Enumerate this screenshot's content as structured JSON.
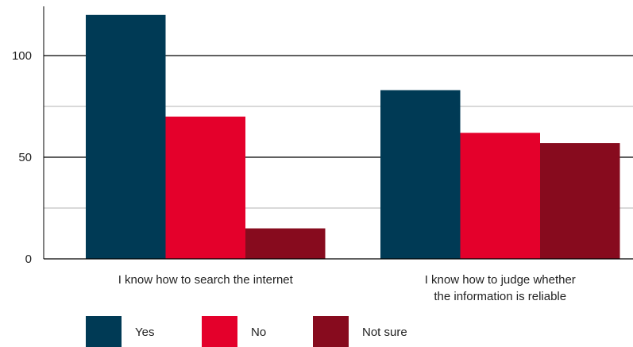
{
  "chart_data": {
    "type": "bar",
    "categories": [
      [
        "I know how to search the internet"
      ],
      [
        "I know how to judge whether",
        "the information is reliable"
      ]
    ],
    "series": [
      {
        "name": "Yes",
        "values": [
          120,
          83
        ],
        "color": "#003a55"
      },
      {
        "name": "No",
        "values": [
          70,
          62
        ],
        "color": "#e4002b"
      },
      {
        "name": "Not sure",
        "values": [
          15,
          57
        ],
        "color": "#870b1e"
      }
    ],
    "yticks": [
      0,
      50,
      100
    ],
    "ylim": [
      0,
      120
    ],
    "grid": true,
    "legend": "bottom-left"
  }
}
